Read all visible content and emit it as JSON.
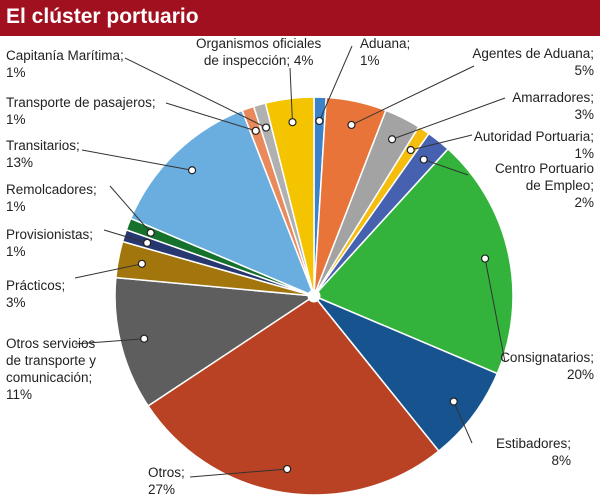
{
  "title": "El clúster portuario",
  "colors": {
    "title_bar": "#a0101e",
    "text": "#222222",
    "leader": "#333333"
  },
  "chart_data": {
    "type": "pie",
    "title": "El clúster portuario",
    "unit": "%",
    "start_angle_deg": 0,
    "direction": "clockwise",
    "slices": [
      {
        "name": "Aduana",
        "value": 1,
        "pct": "1%",
        "color": "#3a82c9"
      },
      {
        "name": "Agentes de Aduana",
        "value": 5,
        "pct": "5%",
        "color": "#e8743a"
      },
      {
        "name": "Amarradores",
        "value": 3,
        "pct": "3%",
        "color": "#a3a3a3"
      },
      {
        "name": "Autoridad Portuaria",
        "value": 1,
        "pct": "1%",
        "color": "#f5bd0e"
      },
      {
        "name": "Centro Portuario de Empleo",
        "value": 2,
        "pct": "2%",
        "color": "#4761b1"
      },
      {
        "name": "Consignatarios",
        "value": 20,
        "pct": "20%",
        "color": "#33b33c"
      },
      {
        "name": "Estibadores",
        "value": 8,
        "pct": "8%",
        "color": "#17548f"
      },
      {
        "name": "Otros",
        "value": 27,
        "pct": "27%",
        "color": "#b84223"
      },
      {
        "name": "Otros servicios de transporte y comunicación",
        "value": 11,
        "pct": "11%",
        "color": "#5e5e5e"
      },
      {
        "name": "Prácticos",
        "value": 3,
        "pct": "3%",
        "color": "#a3760d"
      },
      {
        "name": "Provisionistas",
        "value": 1,
        "pct": "1%",
        "color": "#273871"
      },
      {
        "name": "Remolcadores",
        "value": 1,
        "pct": "1%",
        "color": "#16712c"
      },
      {
        "name": "Transitarios",
        "value": 13,
        "pct": "13%",
        "color": "#6aaee0"
      },
      {
        "name": "Transporte de pasajeros",
        "value": 1,
        "pct": "1%",
        "color": "#e98a5c"
      },
      {
        "name": "Capitanía Marítima",
        "value": 1,
        "pct": "1%",
        "color": "#b0b0b0"
      },
      {
        "name": "Organismos oficiales de inspección",
        "value": 4,
        "pct": "4%",
        "color": "#f5c400"
      }
    ]
  },
  "labels": {
    "aduana": {
      "l1": "Aduana;",
      "l2": "1%"
    },
    "agentes": {
      "l1": "Agentes de Aduana;",
      "l2": "5%"
    },
    "amarradores": {
      "l1": "Amarradores;",
      "l2": "3%"
    },
    "autoridad": {
      "l1": "Autoridad Portuaria;",
      "l2": "1%"
    },
    "centro": {
      "l1": "Centro Portuario",
      "l2": "de Empleo;",
      "l3": "2%"
    },
    "consignatarios": {
      "l1": "Consignatarios;",
      "l2": "20%"
    },
    "estibadores": {
      "l1": "Estibadores;",
      "l2": "8%"
    },
    "otros": {
      "l1": "Otros;",
      "l2": "27%"
    },
    "otrosserv": {
      "l1": "Otros servicios",
      "l2": "de transporte y",
      "l3": "comunicación;",
      "l4": "11%"
    },
    "practicos": {
      "l1": "Prácticos;",
      "l2": "3%"
    },
    "provisionistas": {
      "l1": "Provisionistas;",
      "l2": "1%"
    },
    "remolcadores": {
      "l1": "Remolcadores;",
      "l2": "1%"
    },
    "transitarios": {
      "l1": "Transitarios;",
      "l2": "13%"
    },
    "transporte": {
      "l1": "Transporte de pasajeros;",
      "l2": "1%"
    },
    "capitania": {
      "l1": "Capitanía Marítima;",
      "l2": "1%"
    },
    "organismos": {
      "l1": "Organismos oficiales",
      "l2": "de inspección; 4%"
    }
  }
}
